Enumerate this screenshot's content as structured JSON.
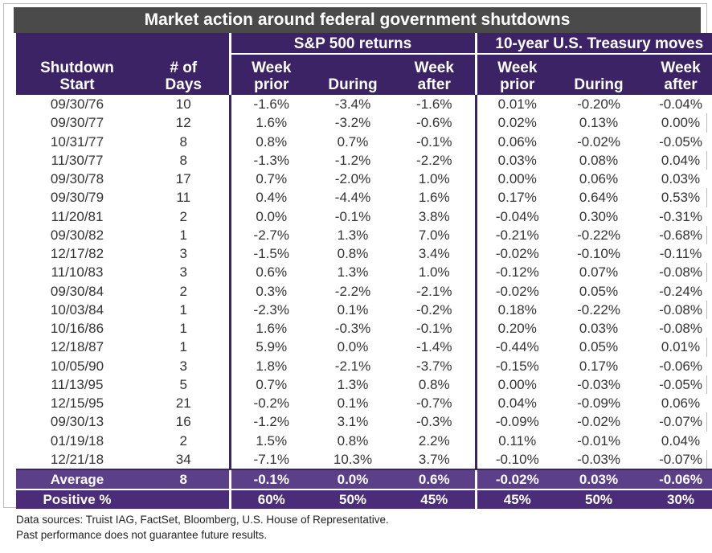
{
  "title": "Market action around federal government shutdowns",
  "groups": {
    "sp500": "S&P 500 returns",
    "treasury": "10-year U.S. Treasury moves"
  },
  "headers": {
    "start_line1": "Shutdown",
    "start_line2": "Start",
    "days_line1": "# of",
    "days_line2": "Days",
    "week_prior_line1": "Week",
    "week_prior_line2": "prior",
    "during": "During",
    "week_after_line1": "Week",
    "week_after_line2": "after"
  },
  "rows": [
    [
      "09/30/76",
      "10",
      "-1.6%",
      "-3.4%",
      "-1.6%",
      "0.01%",
      "-0.20%",
      "-0.04%"
    ],
    [
      "09/30/77",
      "12",
      "1.6%",
      "-3.2%",
      "-0.6%",
      "0.02%",
      "0.13%",
      "0.00%"
    ],
    [
      "10/31/77",
      "8",
      "0.8%",
      "0.7%",
      "-0.1%",
      "0.06%",
      "-0.02%",
      "-0.05%"
    ],
    [
      "11/30/77",
      "8",
      "-1.3%",
      "-1.2%",
      "-2.2%",
      "0.03%",
      "0.08%",
      "0.04%"
    ],
    [
      "09/30/78",
      "17",
      "0.7%",
      "-2.0%",
      "1.0%",
      "0.00%",
      "0.06%",
      "0.03%"
    ],
    [
      "09/30/79",
      "11",
      "0.4%",
      "-4.4%",
      "1.6%",
      "0.17%",
      "0.64%",
      "0.53%"
    ],
    [
      "11/20/81",
      "2",
      "0.0%",
      "-0.1%",
      "3.8%",
      "-0.04%",
      "0.30%",
      "-0.31%"
    ],
    [
      "09/30/82",
      "1",
      "-2.7%",
      "1.3%",
      "7.0%",
      "-0.21%",
      "-0.22%",
      "-0.68%"
    ],
    [
      "12/17/82",
      "3",
      "-1.5%",
      "0.8%",
      "3.4%",
      "-0.02%",
      "-0.10%",
      "-0.11%"
    ],
    [
      "11/10/83",
      "3",
      "0.6%",
      "1.3%",
      "1.0%",
      "-0.12%",
      "0.07%",
      "-0.08%"
    ],
    [
      "09/30/84",
      "2",
      "0.3%",
      "-2.2%",
      "-2.1%",
      "-0.02%",
      "0.05%",
      "-0.24%"
    ],
    [
      "10/03/84",
      "1",
      "-2.3%",
      "0.1%",
      "-0.2%",
      "0.18%",
      "-0.22%",
      "-0.08%"
    ],
    [
      "10/16/86",
      "1",
      "1.6%",
      "-0.3%",
      "-0.1%",
      "0.20%",
      "0.03%",
      "-0.08%"
    ],
    [
      "12/18/87",
      "1",
      "5.9%",
      "0.0%",
      "-1.4%",
      "-0.44%",
      "0.05%",
      "0.01%"
    ],
    [
      "10/05/90",
      "3",
      "1.8%",
      "-2.1%",
      "-3.7%",
      "-0.15%",
      "0.17%",
      "-0.06%"
    ],
    [
      "11/13/95",
      "5",
      "0.7%",
      "1.3%",
      "0.8%",
      "0.00%",
      "-0.03%",
      "-0.05%"
    ],
    [
      "12/15/95",
      "21",
      "-0.2%",
      "0.1%",
      "-0.7%",
      "0.04%",
      "-0.09%",
      "0.06%"
    ],
    [
      "09/30/13",
      "16",
      "-1.2%",
      "3.1%",
      "-0.3%",
      "-0.09%",
      "-0.02%",
      "-0.07%"
    ],
    [
      "01/19/18",
      "2",
      "1.5%",
      "0.8%",
      "2.2%",
      "0.11%",
      "-0.01%",
      "0.04%"
    ],
    [
      "12/21/18",
      "34",
      "-7.1%",
      "10.3%",
      "3.7%",
      "-0.10%",
      "-0.03%",
      "-0.07%"
    ]
  ],
  "average": [
    "Average",
    "8",
    "-0.1%",
    "0.0%",
    "0.6%",
    "-0.02%",
    "0.03%",
    "-0.06%"
  ],
  "positive": [
    "Positive %",
    "",
    "60%",
    "50%",
    "45%",
    "45%",
    "50%",
    "30%"
  ],
  "footnotes": [
    "Data sources: Truist IAG, FactSet, Bloomberg, U.S. House of Representative.",
    "Past performance does not guarantee future results."
  ],
  "colors": {
    "header_purple": "#3b2366",
    "summary_purple": "#5b3f88",
    "title_gray": "#4a4a4a"
  }
}
